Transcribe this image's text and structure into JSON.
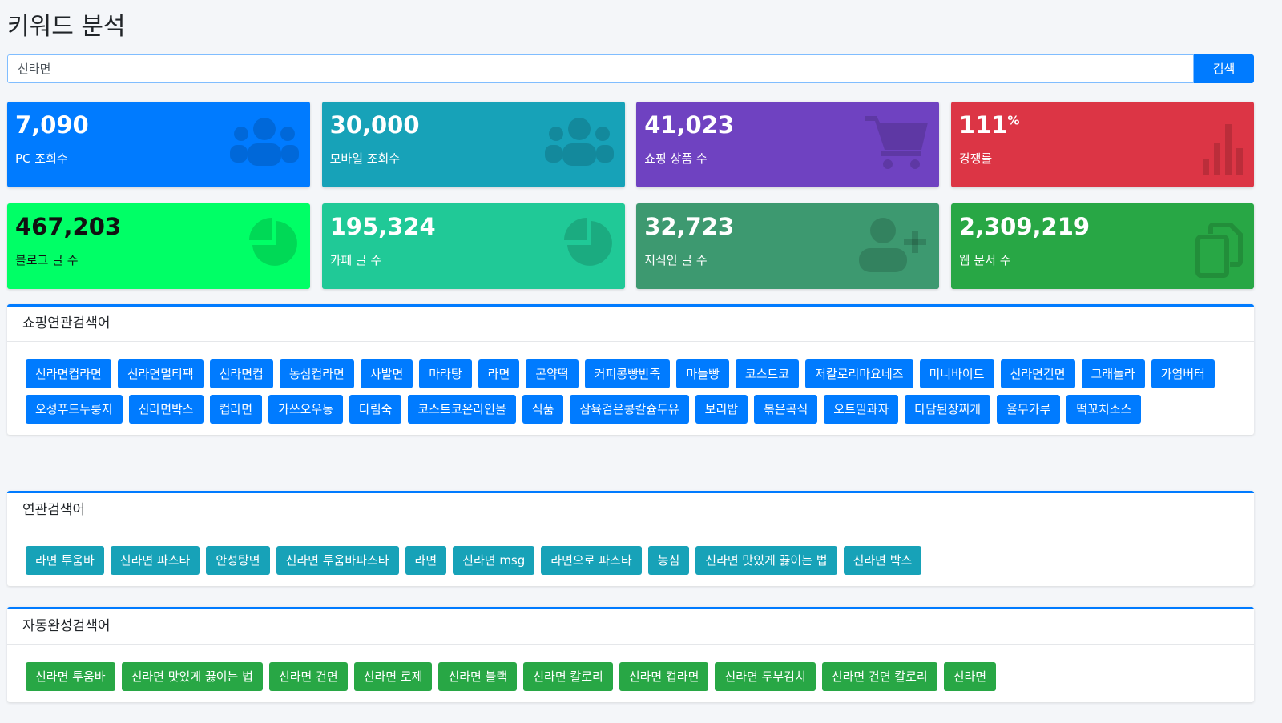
{
  "header": {
    "title": "키워드 분석"
  },
  "search": {
    "input_value": "신라면",
    "button": "검색"
  },
  "stats": [
    {
      "value": "7,090",
      "label": "PC 조회수"
    },
    {
      "value": "30,000",
      "label": "모바일 조회수"
    },
    {
      "value": "41,023",
      "label": "쇼핑 상품 수"
    },
    {
      "value": "111",
      "unit": "%",
      "label": "경쟁률"
    },
    {
      "value": "467,203",
      "label": "블로그 글 수"
    },
    {
      "value": "195,324",
      "label": "카페 글 수"
    },
    {
      "value": "32,723",
      "label": "지식인 글 수"
    },
    {
      "value": "2,309,219",
      "label": "웹 문서 수"
    }
  ],
  "sections": [
    {
      "title": "쇼핑연관검색어",
      "tags": [
        "신라면컵라면",
        "신라면멀티팩",
        "신라면컵",
        "농심컵라면",
        "사발면",
        "마라탕",
        "라면",
        "곤약떡",
        "커피콩빵반죽",
        "마늘빵",
        "코스트코",
        "저칼로리마요네즈",
        "미니바이트",
        "신라면건면",
        "그래놀라",
        "가염버터",
        "오성푸드누룽지",
        "신라면박스",
        "컵라면",
        "가쓰오우동",
        "다림죽",
        "코스트코온라인몰",
        "식품",
        "삼육검은콩칼슘두유",
        "보리밥",
        "볶은곡식",
        "오트밀과자",
        "다담된장찌개",
        "율무가루",
        "떡꼬치소스"
      ]
    },
    {
      "title": "연관검색어",
      "tags": [
        "라면 투움바",
        "신라면 파스타",
        "안성탕면",
        "신라면 투움바파스타",
        "라면",
        "신라면 msg",
        "라면으로 파스타",
        "농심",
        "신라면 맛있게 끓이는 법",
        "신라면 박스"
      ]
    },
    {
      "title": "자동완성검색어",
      "tags": [
        "신라면 투움바",
        "신라면 맛있게 끓이는 법",
        "신라면 건면",
        "신라면 로제",
        "신라면 블랙",
        "신라면 칼로리",
        "신라면 컵라면",
        "신라면 두부김치",
        "신라면 건면 칼로리",
        "신라면"
      ]
    }
  ]
}
